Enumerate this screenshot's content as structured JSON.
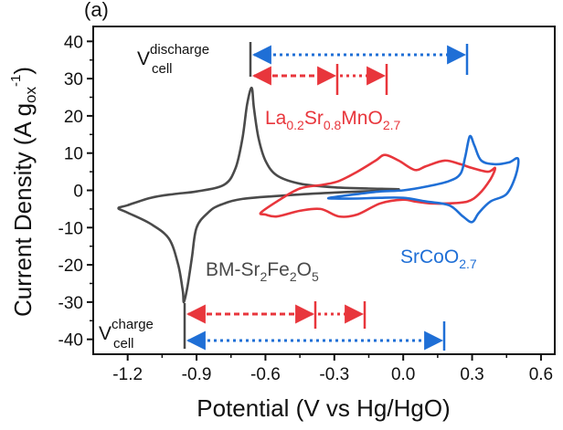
{
  "panel_label": "(a)",
  "colors": {
    "bm": "#4a4a4a",
    "lsmo": "#e8363c",
    "sco": "#1f6fd6",
    "axis": "#111111"
  },
  "annotations": {
    "vcell_top_main": "V",
    "vcell_top_sub": "cell",
    "vcell_top_sup": "discharge",
    "vcell_bottom_main": "V",
    "vcell_bottom_sub": "cell",
    "vcell_bottom_sup": "charge",
    "bm_label_main": "BM-Sr",
    "bm_sub1": "2",
    "bm_mid": "Fe",
    "bm_sub2": "2",
    "bm_end": "O",
    "bm_sub3": "5",
    "lsmo_p1": "La",
    "lsmo_s1": "0.2",
    "lsmo_p2": "Sr",
    "lsmo_s2": "0.8",
    "lsmo_p3": "MnO",
    "lsmo_s3": "2.7",
    "sco_p1": "SrCoO",
    "sco_s1": "2.7"
  },
  "chart_data": {
    "type": "line",
    "title": "",
    "xlabel": "Potential (V vs Hg/HgO)",
    "ylabel_main": "Current Density (A g",
    "ylabel_sub": "ox",
    "ylabel_sup": "-1",
    "ylabel_end": ")",
    "xlim": [
      -1.35,
      0.66
    ],
    "ylim": [
      -44,
      44
    ],
    "xticks": [
      -1.2,
      -0.9,
      -0.6,
      -0.3,
      0.0,
      0.3,
      0.6
    ],
    "xtick_labels": [
      "-1.2",
      "-0.9",
      "-0.6",
      "-0.3",
      "0.0",
      "0.3",
      "0.6"
    ],
    "yticks": [
      -40,
      -30,
      -20,
      -10,
      0,
      10,
      20,
      30,
      40
    ],
    "ytick_labels": [
      "-40",
      "-30",
      "-20",
      "-10",
      "0",
      "10",
      "20",
      "30",
      "40"
    ],
    "series": [
      {
        "key": "bm",
        "closed": true,
        "points": [
          [
            -0.02,
            0.3
          ],
          [
            -0.15,
            0.5
          ],
          [
            -0.3,
            0.8
          ],
          [
            -0.45,
            1.8
          ],
          [
            -0.55,
            4
          ],
          [
            -0.6,
            8
          ],
          [
            -0.63,
            14
          ],
          [
            -0.65,
            22
          ],
          [
            -0.66,
            27.5
          ],
          [
            -0.68,
            23
          ],
          [
            -0.7,
            14
          ],
          [
            -0.73,
            6
          ],
          [
            -0.78,
            1.5
          ],
          [
            -0.9,
            -0.3
          ],
          [
            -1.0,
            -1
          ],
          [
            -1.1,
            -2
          ],
          [
            -1.2,
            -4
          ],
          [
            -1.24,
            -4.8
          ],
          [
            -1.2,
            -6
          ],
          [
            -1.1,
            -9
          ],
          [
            -1.02,
            -13
          ],
          [
            -0.98,
            -20
          ],
          [
            -0.96,
            -27
          ],
          [
            -0.955,
            -30
          ],
          [
            -0.94,
            -26
          ],
          [
            -0.92,
            -18
          ],
          [
            -0.9,
            -10
          ],
          [
            -0.85,
            -6
          ],
          [
            -0.8,
            -4
          ],
          [
            -0.7,
            -2.3
          ],
          [
            -0.5,
            -1.3
          ],
          [
            -0.3,
            -0.6
          ],
          [
            -0.1,
            -0.1
          ]
        ]
      },
      {
        "key": "lsmo",
        "closed": true,
        "points": [
          [
            -0.62,
            -6
          ],
          [
            -0.55,
            -3
          ],
          [
            -0.45,
            0.5
          ],
          [
            -0.35,
            1.5
          ],
          [
            -0.28,
            2.5
          ],
          [
            -0.2,
            5
          ],
          [
            -0.12,
            8
          ],
          [
            -0.08,
            9.5
          ],
          [
            -0.02,
            8
          ],
          [
            0.05,
            5.5
          ],
          [
            0.1,
            6.5
          ],
          [
            0.18,
            8
          ],
          [
            0.25,
            7
          ],
          [
            0.3,
            6
          ],
          [
            0.37,
            5
          ],
          [
            0.4,
            6
          ],
          [
            0.38,
            3
          ],
          [
            0.33,
            -1
          ],
          [
            0.28,
            -3
          ],
          [
            0.2,
            -3.5
          ],
          [
            0.12,
            -3.5
          ],
          [
            0.05,
            -3
          ],
          [
            0.0,
            -2.5
          ],
          [
            -0.1,
            -3.5
          ],
          [
            -0.2,
            -6.5
          ],
          [
            -0.28,
            -7
          ],
          [
            -0.36,
            -5
          ],
          [
            -0.45,
            -5.5
          ],
          [
            -0.55,
            -7
          ],
          [
            -0.6,
            -6.5
          ]
        ]
      },
      {
        "key": "sco",
        "closed": true,
        "points": [
          [
            -0.32,
            -2
          ],
          [
            -0.2,
            -1
          ],
          [
            -0.1,
            -0.3
          ],
          [
            0.0,
            0
          ],
          [
            0.1,
            1
          ],
          [
            0.2,
            2.5
          ],
          [
            0.25,
            4.5
          ],
          [
            0.27,
            9
          ],
          [
            0.29,
            14.5
          ],
          [
            0.31,
            12
          ],
          [
            0.34,
            8
          ],
          [
            0.4,
            7
          ],
          [
            0.46,
            7.5
          ],
          [
            0.5,
            8.5
          ],
          [
            0.49,
            4
          ],
          [
            0.45,
            -1
          ],
          [
            0.38,
            -3
          ],
          [
            0.33,
            -6
          ],
          [
            0.3,
            -8.5
          ],
          [
            0.26,
            -7
          ],
          [
            0.2,
            -4
          ],
          [
            0.1,
            -3
          ],
          [
            0.0,
            -2
          ],
          [
            -0.1,
            -2
          ],
          [
            -0.2,
            -2.2
          ],
          [
            -0.3,
            -2.2
          ]
        ]
      }
    ]
  }
}
